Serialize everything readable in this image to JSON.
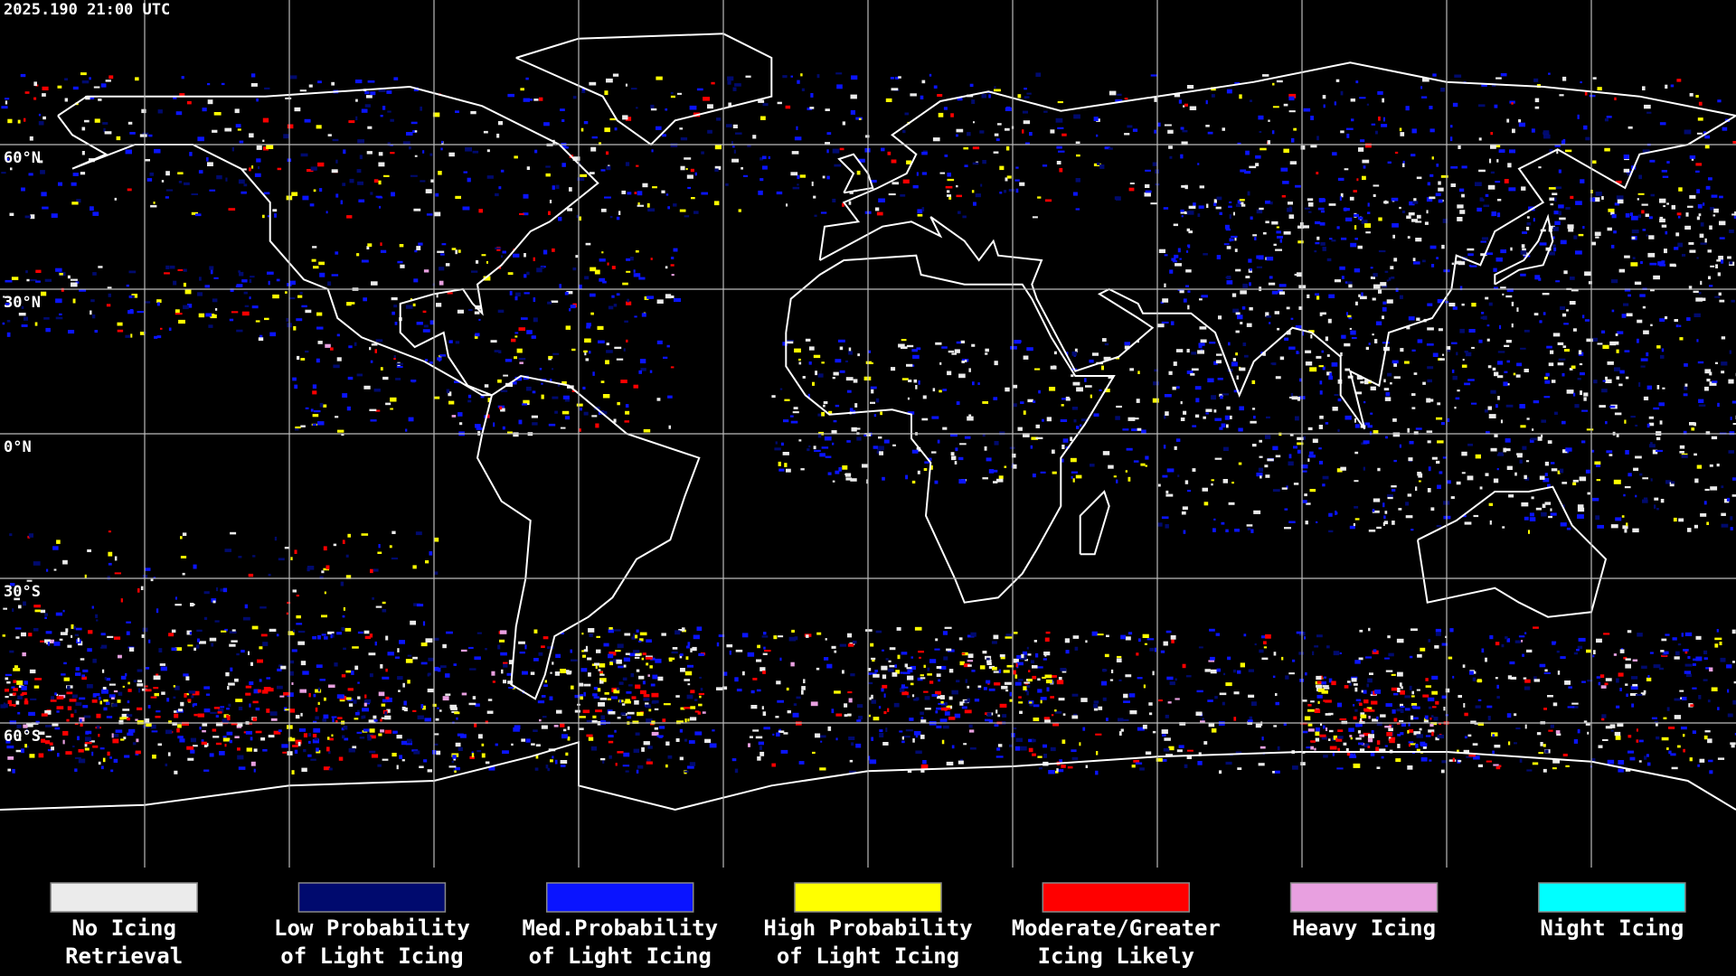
{
  "header": {
    "timestamp": "2025.190 21:00 UTC"
  },
  "map": {
    "lat_labels": [
      "60°N",
      "30°N",
      "0°N",
      "30°S",
      "60°S"
    ]
  },
  "legend": {
    "items": [
      {
        "color": "#ebebeb",
        "label_lines": [
          "No Icing",
          "Retrieval"
        ]
      },
      {
        "color": "#000a6e",
        "label_lines": [
          "Low Probability",
          "of Light Icing"
        ]
      },
      {
        "color": "#0a14ff",
        "label_lines": [
          "Med.Probability",
          "of Light Icing"
        ]
      },
      {
        "color": "#ffff00",
        "label_lines": [
          "High Probability",
          "of Light Icing"
        ]
      },
      {
        "color": "#ff0000",
        "label_lines": [
          "Moderate/Greater",
          "Icing Likely"
        ]
      },
      {
        "color": "#e8a0e0",
        "label_lines": [
          "Heavy Icing"
        ]
      },
      {
        "color": "#00ffff",
        "label_lines": [
          "Night Icing"
        ]
      }
    ]
  }
}
